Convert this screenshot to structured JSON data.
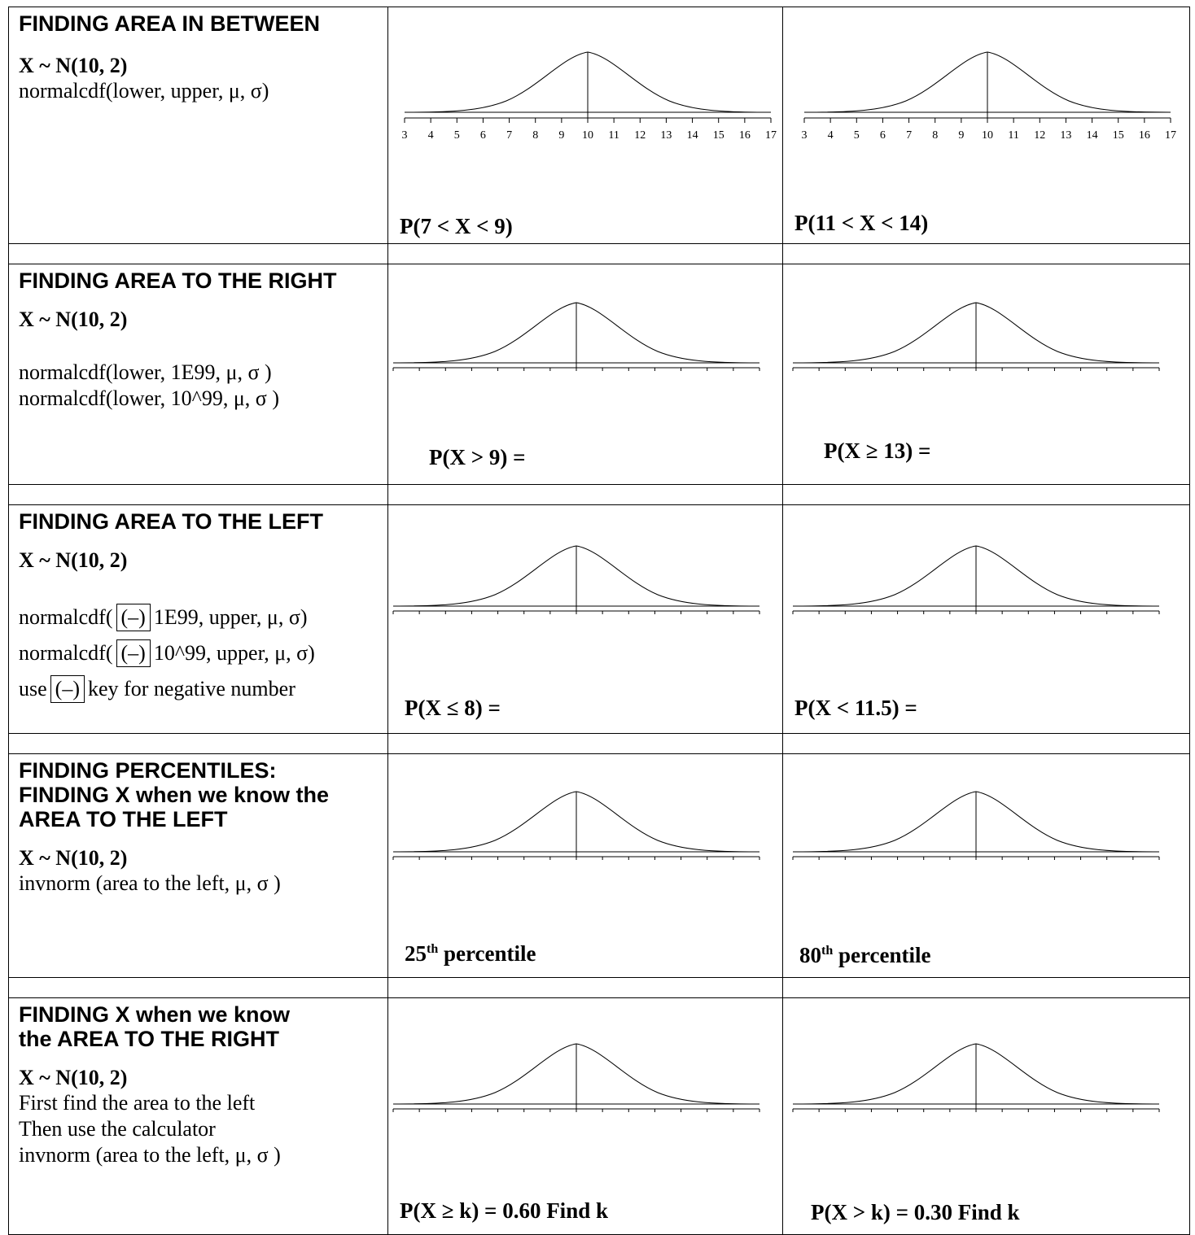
{
  "rows": [
    {
      "heading": "FINDING AREA IN BETWEEN",
      "distribution": "X ~ N(10, 2)",
      "lines": [
        "normalcdf(lower, upper, μ, σ)"
      ],
      "problem_a": "P(7 < X < 9)",
      "problem_b": "P(11 < X < 14)"
    },
    {
      "heading": "FINDING AREA TO THE RIGHT",
      "distribution": "X ~ N(10, 2)",
      "lines": [
        "normalcdf(lower, 1E99, μ, σ )",
        "normalcdf(lower, 10^99, μ, σ )"
      ],
      "problem_a": "P(X > 9) =",
      "problem_b": "P(X ≥ 13) ="
    },
    {
      "heading": "FINDING AREA TO THE LEFT",
      "distribution": "X ~ N(10, 2)",
      "line1_pre": "normalcdf(",
      "line1_post": "1E99, upper, μ, σ)",
      "line2_pre": "normalcdf(",
      "line2_post": "10^99, upper, μ, σ)",
      "line3_pre": "use",
      "line3_post": "key for negative number",
      "neg_key": "(–)",
      "problem_a": "P(X ≤ 8) =",
      "problem_b": "P(X < 11.5) ="
    },
    {
      "heading": [
        "FINDING PERCENTILES:",
        "FINDING X when we know  the",
        "AREA TO THE LEFT"
      ],
      "distribution": "X ~ N(10, 2)",
      "lines": [
        "invnorm (area to the left, μ, σ )"
      ],
      "problem_a_num": "25",
      "problem_a_sup": "th",
      "problem_a_text": " percentile",
      "problem_b_num": "80",
      "problem_b_sup": "th",
      "problem_b_text": " percentile"
    },
    {
      "heading": [
        "FINDING X when we know",
        "the AREA TO THE RIGHT"
      ],
      "distribution": "X ~ N(10, 2)",
      "lines": [
        "First find the area to the left",
        "Then use the calculator",
        "invnorm (area to the left, μ, σ )"
      ],
      "problem_a": "P(X ≥ k) = 0.60  Find k",
      "problem_b": "P(X > k) = 0.30  Find k"
    }
  ],
  "axis_ticks": [
    "3",
    "4",
    "5",
    "6",
    "7",
    "8",
    "9",
    "10",
    "11",
    "12",
    "13",
    "14",
    "15",
    "16",
    "17"
  ]
}
